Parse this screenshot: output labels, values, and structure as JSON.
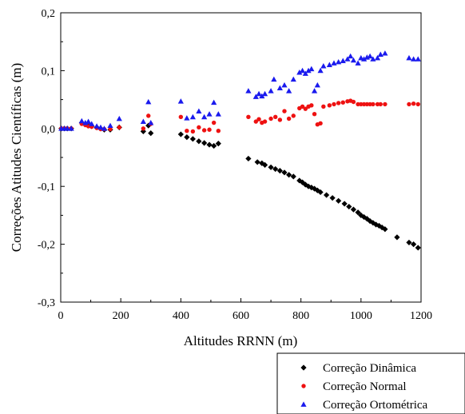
{
  "chart_data": {
    "type": "scatter",
    "xlabel": "Altitudes RRNN (m)",
    "ylabel": "Correções Atitudes Científicas (m)",
    "xlim": [
      0,
      1200
    ],
    "ylim": [
      -0.3,
      0.2
    ],
    "x_ticks": [
      "0",
      "200",
      "400",
      "600",
      "800",
      "1000",
      "1200"
    ],
    "y_ticks": [
      "-0,3",
      "-0,2",
      "-0,1",
      "0,0",
      "0,1",
      "0,2"
    ],
    "legend_position": "bottom-right, outside plot",
    "grid": false,
    "series": [
      {
        "name": "Correção Dinâmica",
        "color": "#000000",
        "marker": "diamond",
        "points": [
          [
            2,
            0.0
          ],
          [
            12,
            0.0
          ],
          [
            22,
            0.0
          ],
          [
            35,
            0.0
          ],
          [
            70,
            0.01
          ],
          [
            82,
            0.007
          ],
          [
            92,
            0.005
          ],
          [
            103,
            0.004
          ],
          [
            120,
            0.002
          ],
          [
            133,
            0.0
          ],
          [
            145,
            -0.002
          ],
          [
            165,
            -0.002
          ],
          [
            195,
            0.002
          ],
          [
            275,
            -0.005
          ],
          [
            292,
            0.005
          ],
          [
            300,
            -0.008
          ],
          [
            400,
            -0.01
          ],
          [
            420,
            -0.015
          ],
          [
            440,
            -0.018
          ],
          [
            460,
            -0.022
          ],
          [
            478,
            -0.025
          ],
          [
            495,
            -0.028
          ],
          [
            510,
            -0.03
          ],
          [
            525,
            -0.026
          ],
          [
            625,
            -0.052
          ],
          [
            655,
            -0.058
          ],
          [
            670,
            -0.06
          ],
          [
            680,
            -0.063
          ],
          [
            700,
            -0.067
          ],
          [
            715,
            -0.07
          ],
          [
            730,
            -0.073
          ],
          [
            745,
            -0.076
          ],
          [
            760,
            -0.08
          ],
          [
            775,
            -0.083
          ],
          [
            795,
            -0.09
          ],
          [
            805,
            -0.093
          ],
          [
            815,
            -0.097
          ],
          [
            825,
            -0.1
          ],
          [
            835,
            -0.102
          ],
          [
            845,
            -0.104
          ],
          [
            855,
            -0.107
          ],
          [
            865,
            -0.11
          ],
          [
            885,
            -0.115
          ],
          [
            905,
            -0.12
          ],
          [
            925,
            -0.125
          ],
          [
            945,
            -0.13
          ],
          [
            960,
            -0.135
          ],
          [
            975,
            -0.14
          ],
          [
            990,
            -0.145
          ],
          [
            1000,
            -0.15
          ],
          [
            1010,
            -0.153
          ],
          [
            1020,
            -0.156
          ],
          [
            1030,
            -0.16
          ],
          [
            1040,
            -0.163
          ],
          [
            1050,
            -0.166
          ],
          [
            1060,
            -0.168
          ],
          [
            1070,
            -0.171
          ],
          [
            1080,
            -0.174
          ],
          [
            1120,
            -0.188
          ],
          [
            1160,
            -0.197
          ],
          [
            1175,
            -0.2
          ],
          [
            1190,
            -0.206
          ]
        ]
      },
      {
        "name": "Correção Normal",
        "color": "#ee1111",
        "marker": "circle",
        "points": [
          [
            2,
            0.0
          ],
          [
            12,
            0.0
          ],
          [
            22,
            0.0
          ],
          [
            35,
            0.0
          ],
          [
            70,
            0.008
          ],
          [
            82,
            0.006
          ],
          [
            92,
            0.004
          ],
          [
            103,
            0.003
          ],
          [
            120,
            0.001
          ],
          [
            133,
            -0.001
          ],
          [
            145,
            -0.001
          ],
          [
            165,
            -0.001
          ],
          [
            195,
            0.002
          ],
          [
            275,
            0.0
          ],
          [
            292,
            0.022
          ],
          [
            300,
            0.008
          ],
          [
            400,
            0.02
          ],
          [
            420,
            -0.004
          ],
          [
            440,
            -0.005
          ],
          [
            460,
            0.002
          ],
          [
            478,
            -0.003
          ],
          [
            495,
            -0.002
          ],
          [
            510,
            0.01
          ],
          [
            525,
            -0.004
          ],
          [
            625,
            0.02
          ],
          [
            650,
            0.012
          ],
          [
            660,
            0.016
          ],
          [
            670,
            0.01
          ],
          [
            680,
            0.012
          ],
          [
            700,
            0.017
          ],
          [
            715,
            0.02
          ],
          [
            730,
            0.015
          ],
          [
            745,
            0.03
          ],
          [
            760,
            0.017
          ],
          [
            775,
            0.022
          ],
          [
            795,
            0.035
          ],
          [
            805,
            0.038
          ],
          [
            815,
            0.034
          ],
          [
            825,
            0.038
          ],
          [
            835,
            0.04
          ],
          [
            845,
            0.025
          ],
          [
            855,
            0.007
          ],
          [
            865,
            0.009
          ],
          [
            875,
            0.038
          ],
          [
            895,
            0.04
          ],
          [
            910,
            0.042
          ],
          [
            925,
            0.044
          ],
          [
            940,
            0.045
          ],
          [
            955,
            0.047
          ],
          [
            965,
            0.048
          ],
          [
            975,
            0.046
          ],
          [
            990,
            0.042
          ],
          [
            1000,
            0.042
          ],
          [
            1010,
            0.042
          ],
          [
            1020,
            0.042
          ],
          [
            1030,
            0.042
          ],
          [
            1040,
            0.042
          ],
          [
            1055,
            0.042
          ],
          [
            1065,
            0.042
          ],
          [
            1080,
            0.042
          ],
          [
            1160,
            0.042
          ],
          [
            1175,
            0.043
          ],
          [
            1190,
            0.042
          ]
        ]
      },
      {
        "name": "Correção Ortométrica",
        "color": "#1a1aee",
        "marker": "triangle",
        "points": [
          [
            2,
            0.0
          ],
          [
            12,
            0.0
          ],
          [
            22,
            0.0
          ],
          [
            35,
            0.0
          ],
          [
            70,
            0.013
          ],
          [
            82,
            0.01
          ],
          [
            92,
            0.012
          ],
          [
            103,
            0.008
          ],
          [
            120,
            0.004
          ],
          [
            133,
            0.002
          ],
          [
            145,
            0.0
          ],
          [
            165,
            0.005
          ],
          [
            195,
            0.017
          ],
          [
            275,
            0.012
          ],
          [
            292,
            0.046
          ],
          [
            300,
            0.01
          ],
          [
            400,
            0.047
          ],
          [
            420,
            0.018
          ],
          [
            440,
            0.02
          ],
          [
            460,
            0.03
          ],
          [
            478,
            0.02
          ],
          [
            495,
            0.025
          ],
          [
            510,
            0.045
          ],
          [
            525,
            0.025
          ],
          [
            625,
            0.065
          ],
          [
            650,
            0.055
          ],
          [
            660,
            0.06
          ],
          [
            670,
            0.056
          ],
          [
            680,
            0.06
          ],
          [
            700,
            0.065
          ],
          [
            710,
            0.085
          ],
          [
            730,
            0.07
          ],
          [
            745,
            0.075
          ],
          [
            760,
            0.065
          ],
          [
            775,
            0.085
          ],
          [
            795,
            0.097
          ],
          [
            805,
            0.1
          ],
          [
            815,
            0.095
          ],
          [
            825,
            0.1
          ],
          [
            835,
            0.103
          ],
          [
            845,
            0.065
          ],
          [
            855,
            0.075
          ],
          [
            865,
            0.1
          ],
          [
            875,
            0.108
          ],
          [
            895,
            0.11
          ],
          [
            910,
            0.113
          ],
          [
            925,
            0.115
          ],
          [
            940,
            0.117
          ],
          [
            955,
            0.12
          ],
          [
            965,
            0.125
          ],
          [
            975,
            0.118
          ],
          [
            990,
            0.113
          ],
          [
            1000,
            0.122
          ],
          [
            1010,
            0.12
          ],
          [
            1020,
            0.123
          ],
          [
            1030,
            0.125
          ],
          [
            1040,
            0.12
          ],
          [
            1055,
            0.122
          ],
          [
            1065,
            0.128
          ],
          [
            1080,
            0.13
          ],
          [
            1160,
            0.122
          ],
          [
            1175,
            0.12
          ],
          [
            1190,
            0.12
          ]
        ]
      }
    ]
  }
}
